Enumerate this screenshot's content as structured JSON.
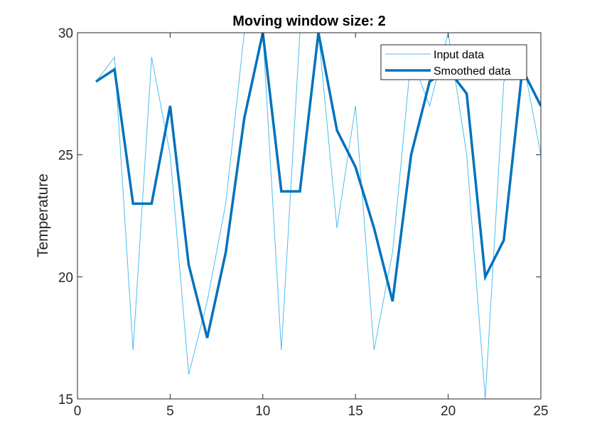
{
  "chart_data": {
    "type": "line",
    "title": "Moving window size: 2",
    "xlabel": "",
    "ylabel": "Temperature",
    "xlim": [
      0,
      25
    ],
    "ylim": [
      15,
      30
    ],
    "xticks": [
      0,
      5,
      10,
      15,
      20,
      25
    ],
    "yticks": [
      15,
      20,
      25,
      30
    ],
    "grid": false,
    "legend_position": "top-right",
    "series": [
      {
        "name": "Input data",
        "color": "#4dbeee",
        "line_width": "thin",
        "x": [
          1,
          2,
          3,
          4,
          5,
          6,
          7,
          8,
          9,
          10,
          11,
          12,
          13,
          14,
          15,
          16,
          17,
          18,
          19,
          20,
          21,
          22,
          23,
          24,
          25
        ],
        "y": [
          28,
          29,
          17,
          29,
          25,
          16,
          19,
          23,
          30,
          30,
          17,
          30,
          30,
          22,
          27,
          17,
          21,
          29,
          27,
          30,
          25,
          15,
          28,
          29,
          25
        ]
      },
      {
        "name": "Smoothed data",
        "color": "#0072bd",
        "line_width": "thick",
        "x": [
          1,
          2,
          3,
          4,
          5,
          6,
          7,
          8,
          9,
          10,
          11,
          12,
          13,
          14,
          15,
          16,
          17,
          18,
          19,
          20,
          21,
          22,
          23,
          24,
          25
        ],
        "y": [
          28,
          28.5,
          23,
          23,
          27,
          20.5,
          17.5,
          21,
          26.5,
          30,
          23.5,
          23.5,
          30,
          26,
          24.5,
          22,
          19,
          25,
          28,
          28.5,
          27.5,
          20,
          21.5,
          28.5,
          27
        ]
      }
    ]
  }
}
